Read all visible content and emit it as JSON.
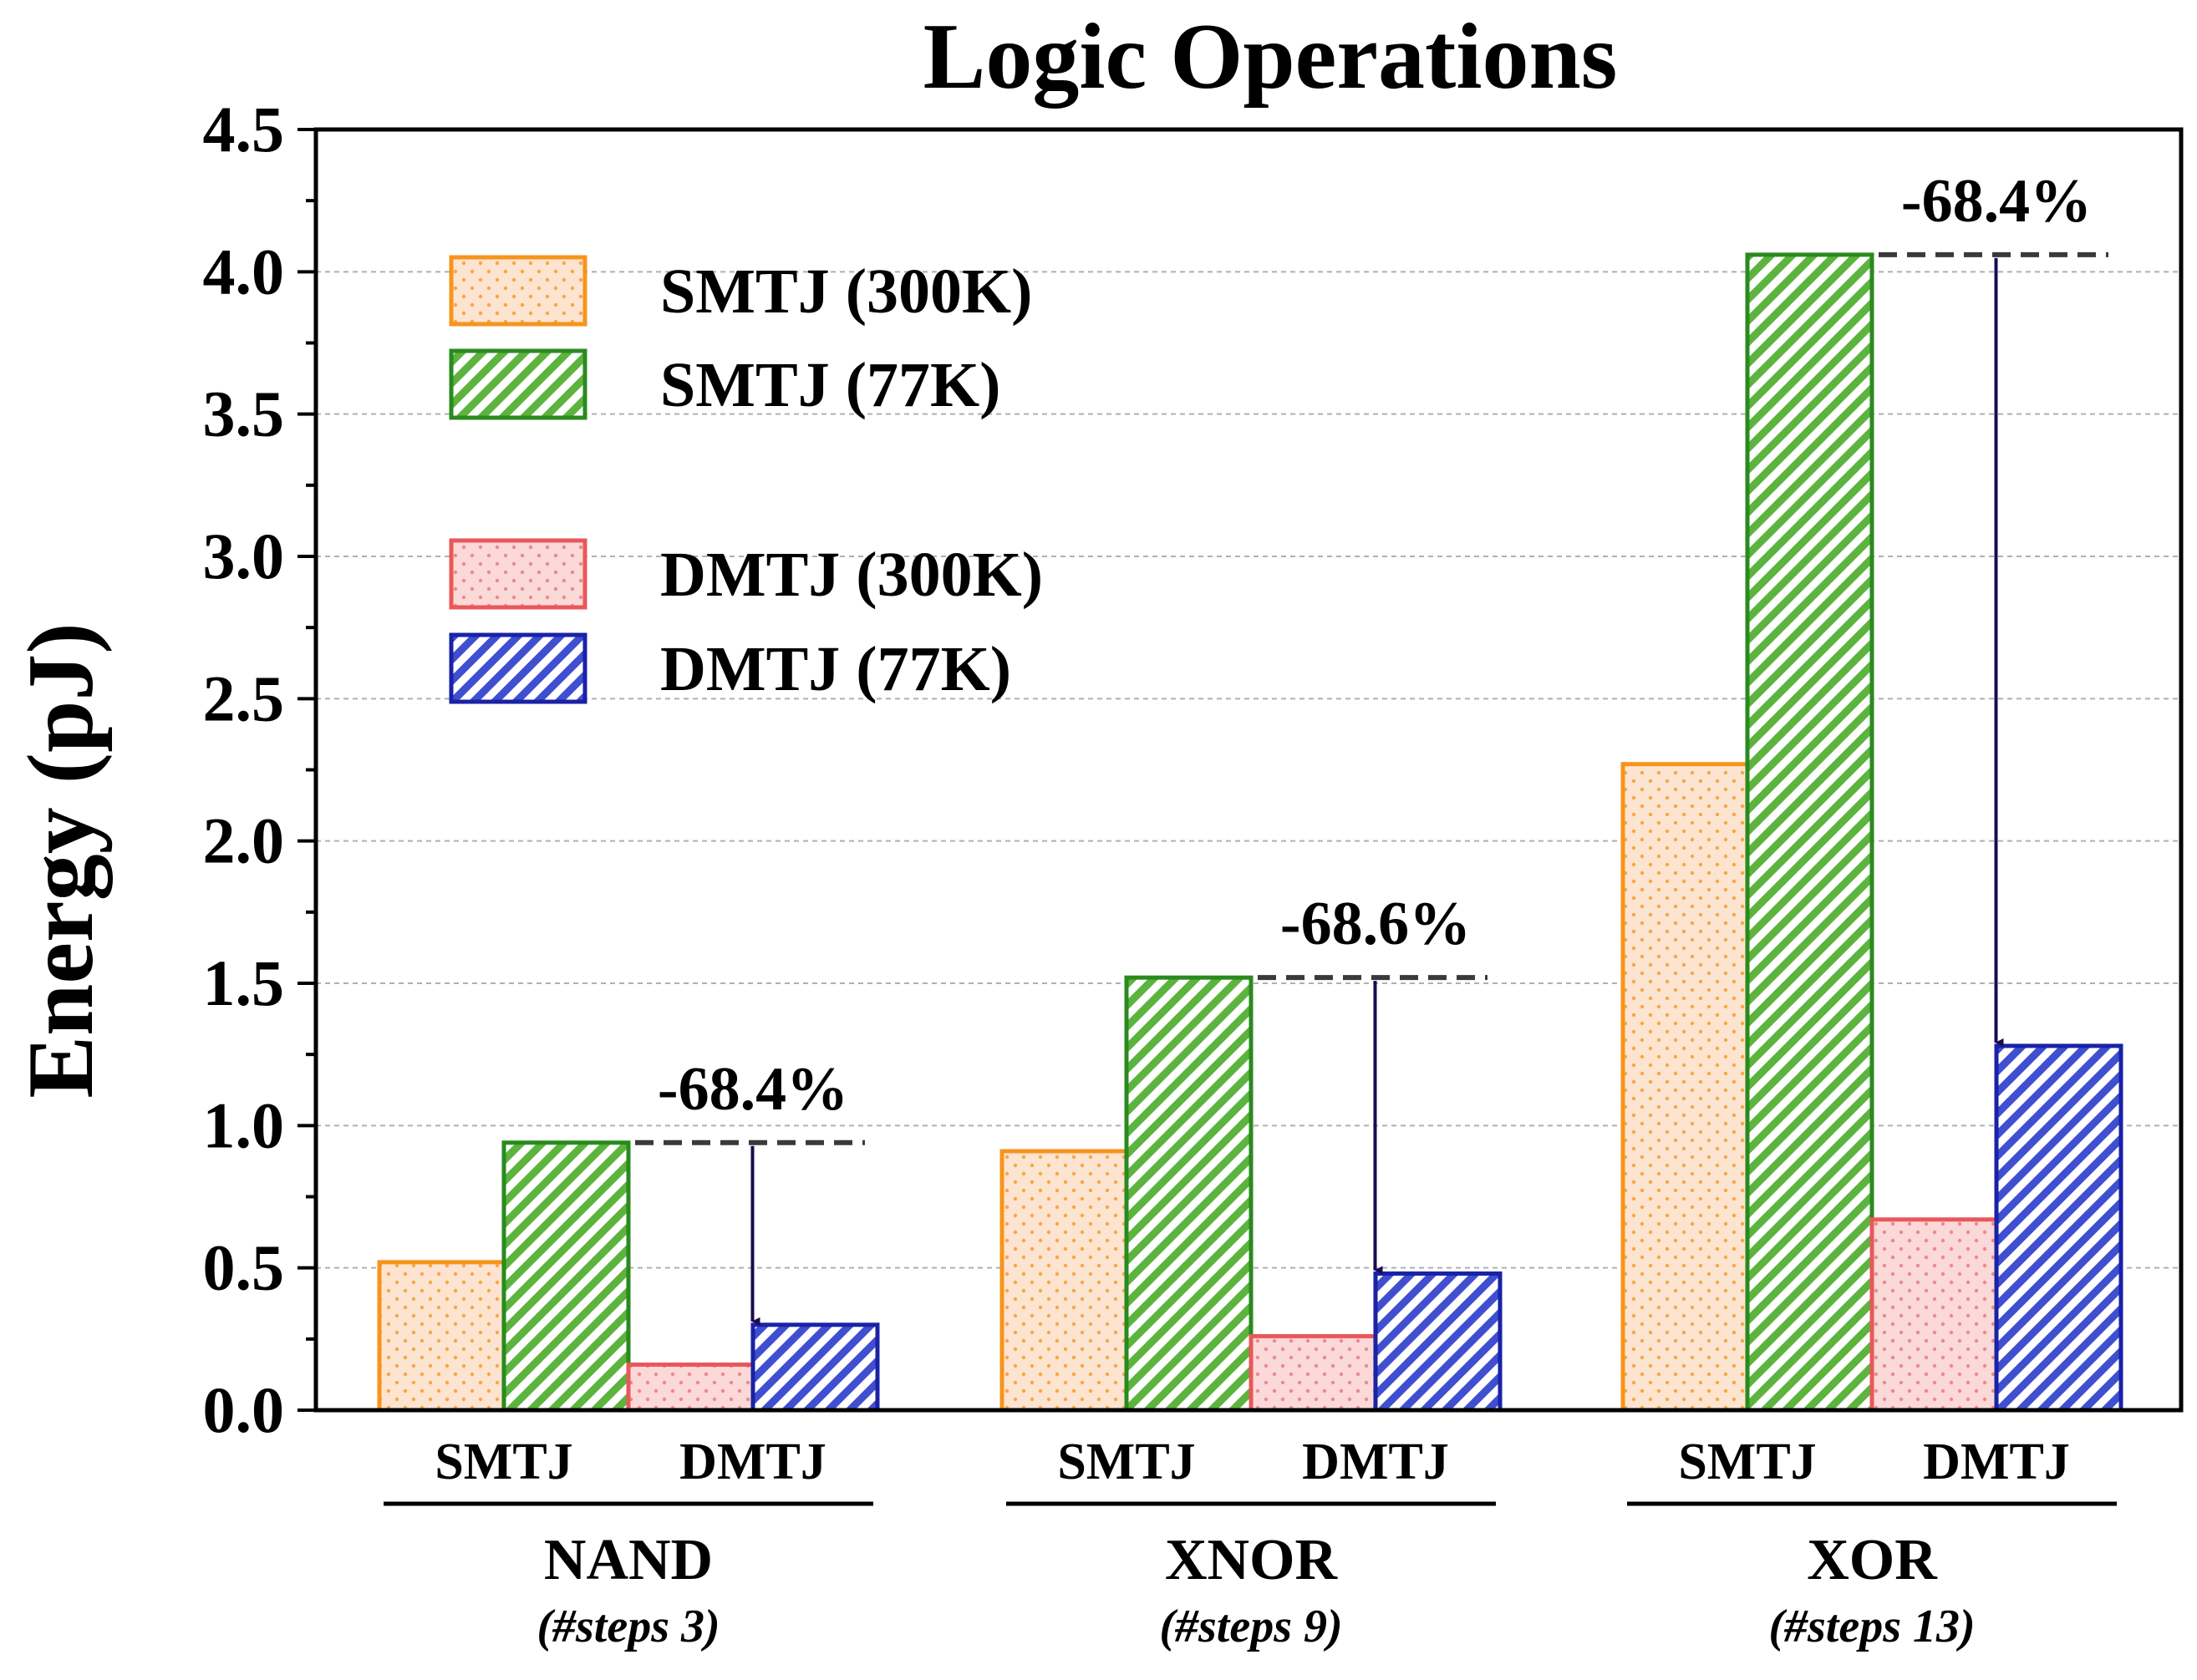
{
  "chart_data": {
    "type": "bar",
    "title": "Logic Operations",
    "ylabel": "Energy (pJ)",
    "xlabel": "",
    "ylim": [
      0,
      4.5
    ],
    "yticks": [
      "0.0",
      "0.5",
      "1.0",
      "1.5",
      "2.0",
      "2.5",
      "3.0",
      "3.5",
      "4.0",
      "4.5"
    ],
    "grid": true,
    "legend_position": "top-left",
    "categories": [
      "NAND",
      "XNOR",
      "XOR"
    ],
    "category_notes": [
      "(#steps 3)",
      "(#steps 9)",
      "(#steps 13)"
    ],
    "subgroup_labels": [
      "SMTJ",
      "DMTJ"
    ],
    "series": [
      {
        "name": "SMTJ (300K)",
        "values": [
          0.52,
          0.91,
          2.27
        ],
        "color": "#f7941d",
        "fill": "#fde4d0",
        "pattern": "dots"
      },
      {
        "name": "SMTJ (77K)",
        "values": [
          0.94,
          1.52,
          4.06
        ],
        "color": "#2a8a1e",
        "fill": "#8ccf6a",
        "pattern": "hatch"
      },
      {
        "name": "DMTJ (300K)",
        "values": [
          0.16,
          0.26,
          0.67
        ],
        "color": "#e8585a",
        "fill": "#fbd9d8",
        "pattern": "dots"
      },
      {
        "name": "DMTJ (77K)",
        "values": [
          0.3,
          0.48,
          1.28
        ],
        "color": "#1a22a6",
        "fill": "#6f7fe0",
        "pattern": "hatch"
      }
    ],
    "annotations": [
      {
        "text": "-68.4%",
        "category": "NAND",
        "from": 0.94,
        "to": 0.3
      },
      {
        "text": "-68.6%",
        "category": "XNOR",
        "from": 1.52,
        "to": 0.48
      },
      {
        "text": "-68.4%",
        "category": "XOR",
        "from": 4.06,
        "to": 1.28
      }
    ]
  }
}
